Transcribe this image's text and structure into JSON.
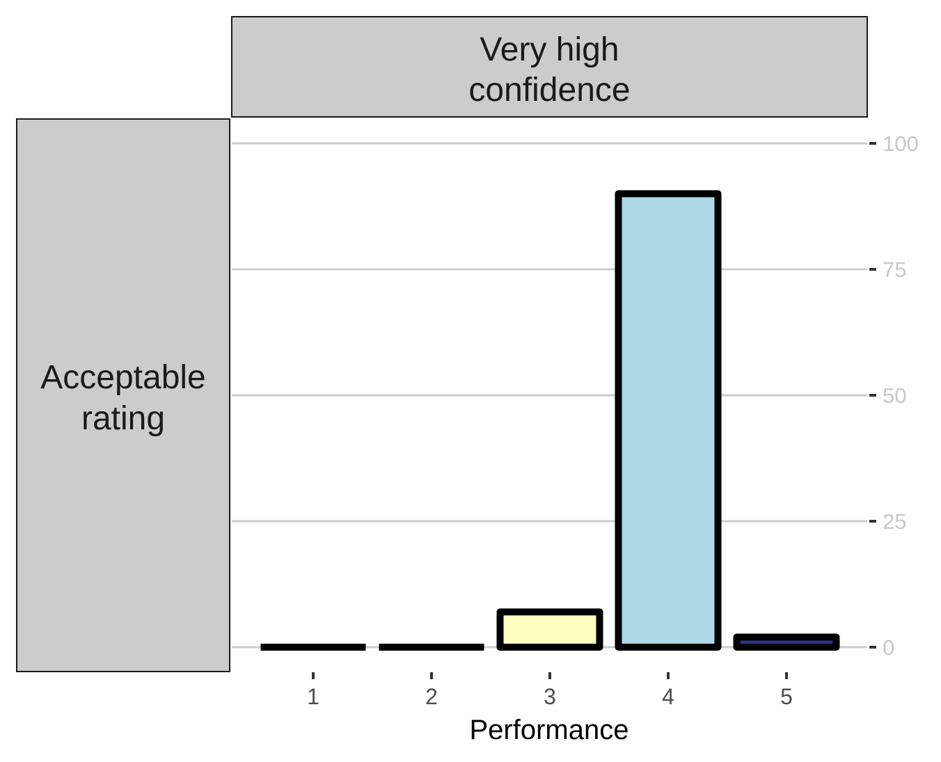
{
  "chart_data": {
    "type": "bar",
    "facet_column_label": [
      "Very high",
      "confidence"
    ],
    "facet_row_label": [
      "Acceptable",
      "rating"
    ],
    "xlabel": "Performance",
    "ylabel": "",
    "categories": [
      "1",
      "2",
      "3",
      "4",
      "5"
    ],
    "values": [
      0,
      0,
      7,
      90,
      2
    ],
    "ylim": [
      0,
      100
    ],
    "yticks": [
      0,
      25,
      50,
      75,
      100
    ],
    "y_axis_position": "right",
    "grid": "horizontal major",
    "legend": "none",
    "bar_colors": [
      "#000000",
      "#000000",
      "#FFFFC0",
      "#ADD8E6",
      "#2E3192"
    ],
    "bar_outline": "#000000",
    "strip_fill": "#CCCCCC",
    "grid_color": "#CCCCCC",
    "y_tick_label_color": "#C8C8C8",
    "x_tick_label_color": "#4D4D4D"
  }
}
